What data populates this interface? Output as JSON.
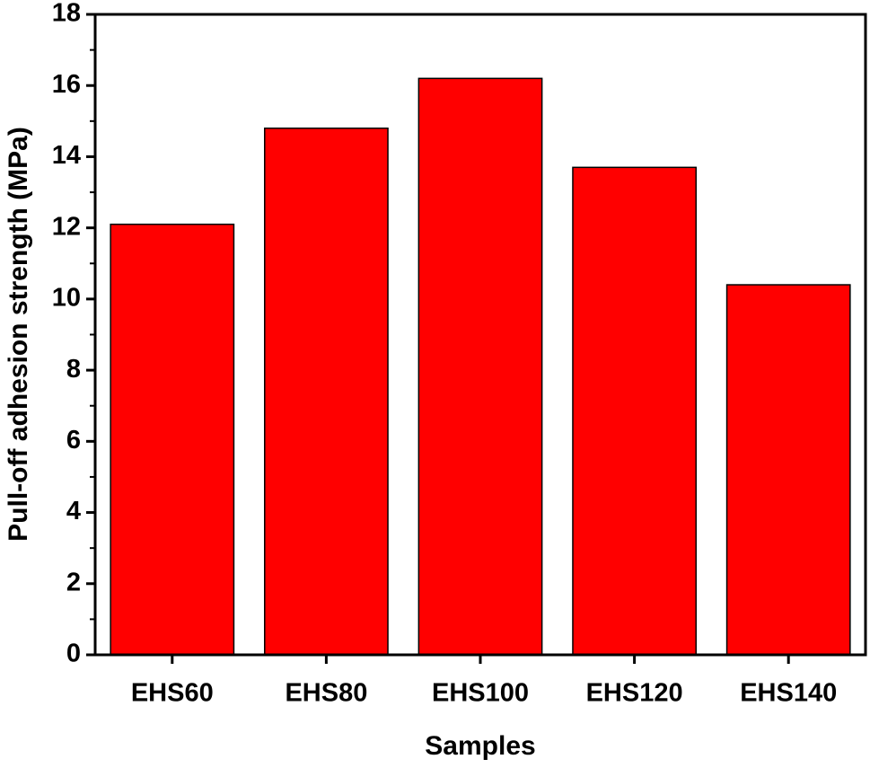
{
  "chart_data": {
    "type": "bar",
    "xlabel": "Samples",
    "ylabel": "Pull-off adhesion strength (MPa)",
    "categories": [
      "EHS60",
      "EHS80",
      "EHS100",
      "EHS120",
      "EHS140"
    ],
    "values": [
      12.1,
      14.8,
      16.2,
      13.7,
      10.4
    ],
    "color": "#ff0000",
    "ylim": [
      0,
      18
    ],
    "yticks": [
      0,
      2,
      4,
      6,
      8,
      10,
      12,
      14,
      16,
      18
    ],
    "yminorticks": [
      1,
      3,
      5,
      7,
      9,
      11,
      13,
      15,
      17
    ],
    "grid": false
  }
}
